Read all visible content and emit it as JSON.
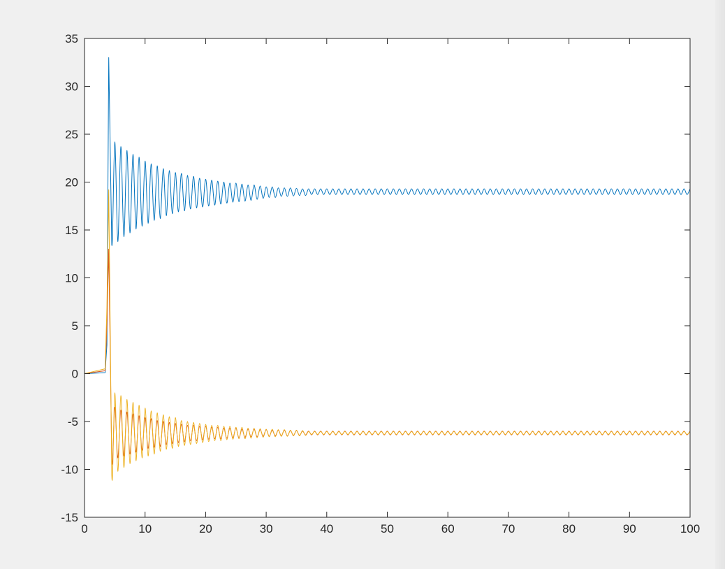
{
  "chart_data": {
    "type": "line",
    "title": "",
    "xlabel": "",
    "ylabel": "",
    "xlim": [
      0,
      100
    ],
    "ylim": [
      -15,
      35
    ],
    "xticks": [
      0,
      10,
      20,
      30,
      40,
      50,
      60,
      70,
      80,
      90,
      100
    ],
    "yticks": [
      -15,
      -10,
      -5,
      0,
      5,
      10,
      15,
      20,
      25,
      30,
      35
    ],
    "grid": false,
    "box": true,
    "x": [
      0,
      3.4,
      3.7,
      4,
      4.5,
      5,
      5.5,
      6,
      6.5,
      7,
      7.5,
      8,
      8.5,
      9,
      9.5,
      10,
      10.5,
      11,
      11.5,
      12,
      12.5,
      13,
      13.5,
      14,
      14.5,
      15,
      15.5,
      16,
      16.5,
      17,
      17.5,
      18,
      18.5,
      19,
      19.5,
      20,
      20.5,
      21,
      21.5,
      22,
      22.5,
      23,
      23.5,
      24,
      24.5,
      25,
      25.5,
      26,
      26.5,
      27,
      27.5,
      28,
      28.5,
      29,
      29.5,
      30,
      30.5,
      31,
      31.5,
      32,
      32.5,
      33,
      33.5,
      34,
      34.5,
      35,
      35.5,
      36,
      36.5,
      37,
      37.5,
      38,
      38.5,
      39,
      39.5,
      40,
      40.5,
      41,
      41.5,
      42,
      42.5,
      43,
      43.5,
      44,
      44.5,
      45,
      45.5,
      46,
      46.5,
      47,
      47.5,
      48,
      48.5,
      49,
      49.5,
      50,
      50.5,
      51,
      51.5,
      52,
      52.5,
      53,
      53.5,
      54,
      54.5,
      55,
      55.5,
      56,
      56.5,
      57,
      57.5,
      58,
      58.5,
      59,
      59.5,
      60,
      60.5,
      61,
      61.5,
      62,
      62.5,
      63,
      63.5,
      64,
      64.5,
      65,
      65.5,
      66,
      66.5,
      67,
      67.5,
      68,
      68.5,
      69,
      69.5,
      70,
      70.5,
      71,
      71.5,
      72,
      72.5,
      73,
      73.5,
      74,
      74.5,
      75,
      75.5,
      76,
      76.5,
      77,
      77.5,
      78,
      78.5,
      79,
      79.5,
      80,
      80.5,
      81,
      81.5,
      82,
      82.5,
      83,
      83.5,
      84,
      84.5,
      85,
      85.5,
      86,
      86.5,
      87,
      87.5,
      88,
      88.5,
      89,
      89.5,
      90,
      90.5,
      91,
      91.5,
      92,
      92.5,
      93,
      93.5,
      94,
      94.5,
      95,
      95.5,
      96,
      96.5,
      97,
      97.5,
      98,
      98.5,
      99,
      99.5,
      100
    ],
    "series": [
      {
        "color": "#0072BD",
        "values": [
          0,
          0.1,
          3,
          33,
          13.5,
          24.2,
          13.8,
          23.7,
          14.3,
          23.3,
          14.7,
          22.9,
          15.1,
          22.6,
          15.4,
          22.2,
          15.7,
          21.9,
          16.0,
          21.7,
          16.2,
          21.4,
          16.5,
          21.2,
          16.7,
          21.0,
          16.9,
          20.9,
          17.0,
          20.7,
          17.2,
          20.6,
          17.3,
          20.4,
          17.4,
          20.3,
          17.5,
          20.2,
          17.6,
          20.1,
          17.7,
          20.0,
          17.8,
          19.9,
          17.9,
          19.9,
          17.95,
          19.8,
          18.0,
          19.7,
          18.1,
          19.7,
          18.2,
          19.6,
          18.3,
          19.5,
          18.4,
          19.5,
          18.4,
          19.4,
          18.5,
          19.4,
          18.5,
          19.4,
          18.55,
          19.35,
          18.6,
          19.3,
          18.6,
          19.3,
          18.7,
          19.3,
          18.7,
          19.3,
          18.7,
          19.3,
          18.7,
          19.3,
          18.7,
          19.3,
          18.7,
          19.3,
          18.7,
          19.3,
          18.7,
          19.3,
          18.7,
          19.3,
          18.7,
          19.3,
          18.7,
          19.3,
          18.7,
          19.3,
          18.7,
          19.3,
          18.7,
          19.3,
          18.7,
          19.3,
          18.7,
          19.3,
          18.7,
          19.3,
          18.7,
          19.3,
          18.7,
          19.3,
          18.7,
          19.3,
          18.7,
          19.3,
          18.7,
          19.3,
          18.7,
          19.3,
          18.7,
          19.3,
          18.7,
          19.3,
          18.7,
          19.3,
          18.7,
          19.3,
          18.7,
          19.3,
          18.7,
          19.3,
          18.7,
          19.3,
          18.7,
          19.3,
          18.7,
          19.3,
          18.7,
          19.3,
          18.7,
          19.3,
          18.7,
          19.3,
          18.7,
          19.3,
          18.7,
          19.3,
          18.7,
          19.3,
          18.7,
          19.3,
          18.7,
          19.3,
          18.7,
          19.3,
          18.7,
          19.3,
          18.7,
          19.3,
          18.7,
          19.3,
          18.7,
          19.3,
          18.7,
          19.3,
          18.7,
          19.3,
          18.7,
          19.3,
          18.7,
          19.3,
          18.7,
          19.3,
          18.7,
          19.3,
          18.7,
          19.3,
          18.7,
          19.3,
          18.7,
          19.3,
          18.7,
          19.3,
          18.7,
          19.3,
          18.7,
          19.3,
          18.7,
          19.3,
          18.7,
          19.3,
          18.7,
          19.3,
          18.7,
          19.3,
          18.7,
          19.3,
          18.7,
          19.3
        ]
      },
      {
        "color": "#D95319",
        "values": [
          0,
          0.3,
          5,
          13,
          -8.9,
          -3.5,
          -8.8,
          -3.8,
          -8.6,
          -4.0,
          -8.4,
          -4.2,
          -8.2,
          -4.4,
          -8.0,
          -4.6,
          -7.8,
          -4.7,
          -7.7,
          -4.9,
          -7.6,
          -5.0,
          -7.4,
          -5.1,
          -7.3,
          -5.2,
          -7.2,
          -5.3,
          -7.1,
          -5.4,
          -7.0,
          -5.4,
          -7.0,
          -5.5,
          -6.9,
          -5.5,
          -6.85,
          -5.6,
          -6.8,
          -5.6,
          -6.8,
          -5.7,
          -6.75,
          -5.7,
          -6.7,
          -5.7,
          -6.7,
          -5.8,
          -6.65,
          -5.8,
          -6.6,
          -5.8,
          -6.6,
          -5.85,
          -6.55,
          -5.85,
          -6.55,
          -5.9,
          -6.5,
          -5.9,
          -6.5,
          -5.9,
          -6.5,
          -5.95,
          -6.45,
          -5.95,
          -6.45,
          -6.0,
          -6.4,
          -6.0,
          -6.4,
          -6.0,
          -6.4,
          -6.0,
          -6.4,
          -6.0,
          -6.4,
          -6.0,
          -6.4,
          -6.0,
          -6.4,
          -6.0,
          -6.4,
          -6.0,
          -6.4,
          -6.0,
          -6.4,
          -6.0,
          -6.4,
          -6.0,
          -6.4,
          -6.0,
          -6.4,
          -6.0,
          -6.4,
          -6.0,
          -6.4,
          -6.0,
          -6.4,
          -6.0,
          -6.4,
          -6.0,
          -6.4,
          -6.0,
          -6.4,
          -6.0,
          -6.4,
          -6.0,
          -6.4,
          -6.0,
          -6.4,
          -6.0,
          -6.4,
          -6.0,
          -6.4,
          -6.0,
          -6.4,
          -6.0,
          -6.4,
          -6.0,
          -6.4,
          -6.0,
          -6.4,
          -6.0,
          -6.4,
          -6.0,
          -6.4,
          -6.0,
          -6.4,
          -6.0,
          -6.4,
          -6.0,
          -6.4,
          -6.0,
          -6.4,
          -6.0,
          -6.4,
          -6.0,
          -6.4,
          -6.0,
          -6.4,
          -6.0,
          -6.4,
          -6.0,
          -6.4,
          -6.0,
          -6.4,
          -6.0,
          -6.4,
          -6.0,
          -6.4,
          -6.0,
          -6.4,
          -6.0,
          -6.4,
          -6.0,
          -6.4,
          -6.0,
          -6.4,
          -6.0,
          -6.4,
          -6.0,
          -6.4,
          -6.0,
          -6.4,
          -6.0,
          -6.4,
          -6.0,
          -6.4,
          -6.0,
          -6.4,
          -6.0,
          -6.4,
          -6.0,
          -6.4,
          -6.0,
          -6.4,
          -6.0,
          -6.4,
          -6.0,
          -6.4,
          -6.0,
          -6.4,
          -6.0,
          -6.4,
          -6.0,
          -6.4,
          -6.0,
          -6.4,
          -6.0,
          -6.4,
          -6.0,
          -6.4,
          -6.0,
          -6.4,
          -6.0
        ]
      },
      {
        "color": "#EDB120",
        "values": [
          0,
          0.5,
          7,
          19.2,
          -10.5,
          -2.0,
          -10.2,
          -2.3,
          -9.8,
          -2.7,
          -9.4,
          -3.0,
          -9.1,
          -3.3,
          -8.8,
          -3.6,
          -8.6,
          -3.9,
          -8.4,
          -4.1,
          -8.1,
          -4.3,
          -7.9,
          -4.5,
          -7.8,
          -4.6,
          -7.6,
          -4.9,
          -7.5,
          -5.0,
          -7.4,
          -5.1,
          -7.3,
          -5.2,
          -7.2,
          -5.3,
          -7.1,
          -5.4,
          -7.0,
          -5.4,
          -7.0,
          -5.5,
          -6.9,
          -5.5,
          -6.85,
          -5.6,
          -6.8,
          -5.6,
          -6.8,
          -5.7,
          -6.75,
          -5.7,
          -6.7,
          -5.75,
          -6.65,
          -5.8,
          -6.6,
          -5.8,
          -6.6,
          -5.85,
          -6.55,
          -5.85,
          -6.55,
          -5.9,
          -6.5,
          -5.9,
          -6.5,
          -5.95,
          -6.45,
          -6.05,
          -6.35,
          -6.05,
          -6.35,
          -6.05,
          -6.35,
          -6.05,
          -6.35,
          -6.05,
          -6.35,
          -6.05,
          -6.35,
          -6.05,
          -6.35,
          -6.05,
          -6.35,
          -6.05,
          -6.35,
          -6.05,
          -6.35,
          -6.05,
          -6.35,
          -6.05,
          -6.35,
          -6.05,
          -6.35,
          -6.05,
          -6.35,
          -6.05,
          -6.35,
          -6.05,
          -6.35,
          -6.05,
          -6.35,
          -6.05,
          -6.35,
          -6.05,
          -6.35,
          -6.05,
          -6.35,
          -6.05,
          -6.35,
          -6.05,
          -6.35,
          -6.05,
          -6.35,
          -6.05,
          -6.35,
          -6.05,
          -6.35,
          -6.05,
          -6.35,
          -6.05,
          -6.35,
          -6.05,
          -6.35,
          -6.05,
          -6.35,
          -6.05,
          -6.35,
          -6.05,
          -6.35,
          -6.05,
          -6.35,
          -6.05,
          -6.35,
          -6.05,
          -6.35,
          -6.05,
          -6.35,
          -6.05,
          -6.35,
          -6.05,
          -6.35,
          -6.05,
          -6.35,
          -6.05,
          -6.35,
          -6.05,
          -6.35,
          -6.05,
          -6.35,
          -6.05,
          -6.35,
          -6.05,
          -6.35,
          -6.05,
          -6.35,
          -6.05,
          -6.35,
          -6.05,
          -6.35,
          -6.05,
          -6.35,
          -6.05,
          -6.35,
          -6.05,
          -6.35,
          -6.05,
          -6.35,
          -6.05,
          -6.35,
          -6.05,
          -6.35,
          -6.05,
          -6.35,
          -6.05,
          -6.35,
          -6.05,
          -6.35,
          -6.05,
          -6.35,
          -6.05,
          -6.35,
          -6.05,
          -6.35,
          -6.05,
          -6.35,
          -6.05,
          -6.35,
          -6.05,
          -6.35,
          -6.05,
          -6.35,
          -6.05,
          -6.35,
          -6.05
        ]
      }
    ]
  }
}
